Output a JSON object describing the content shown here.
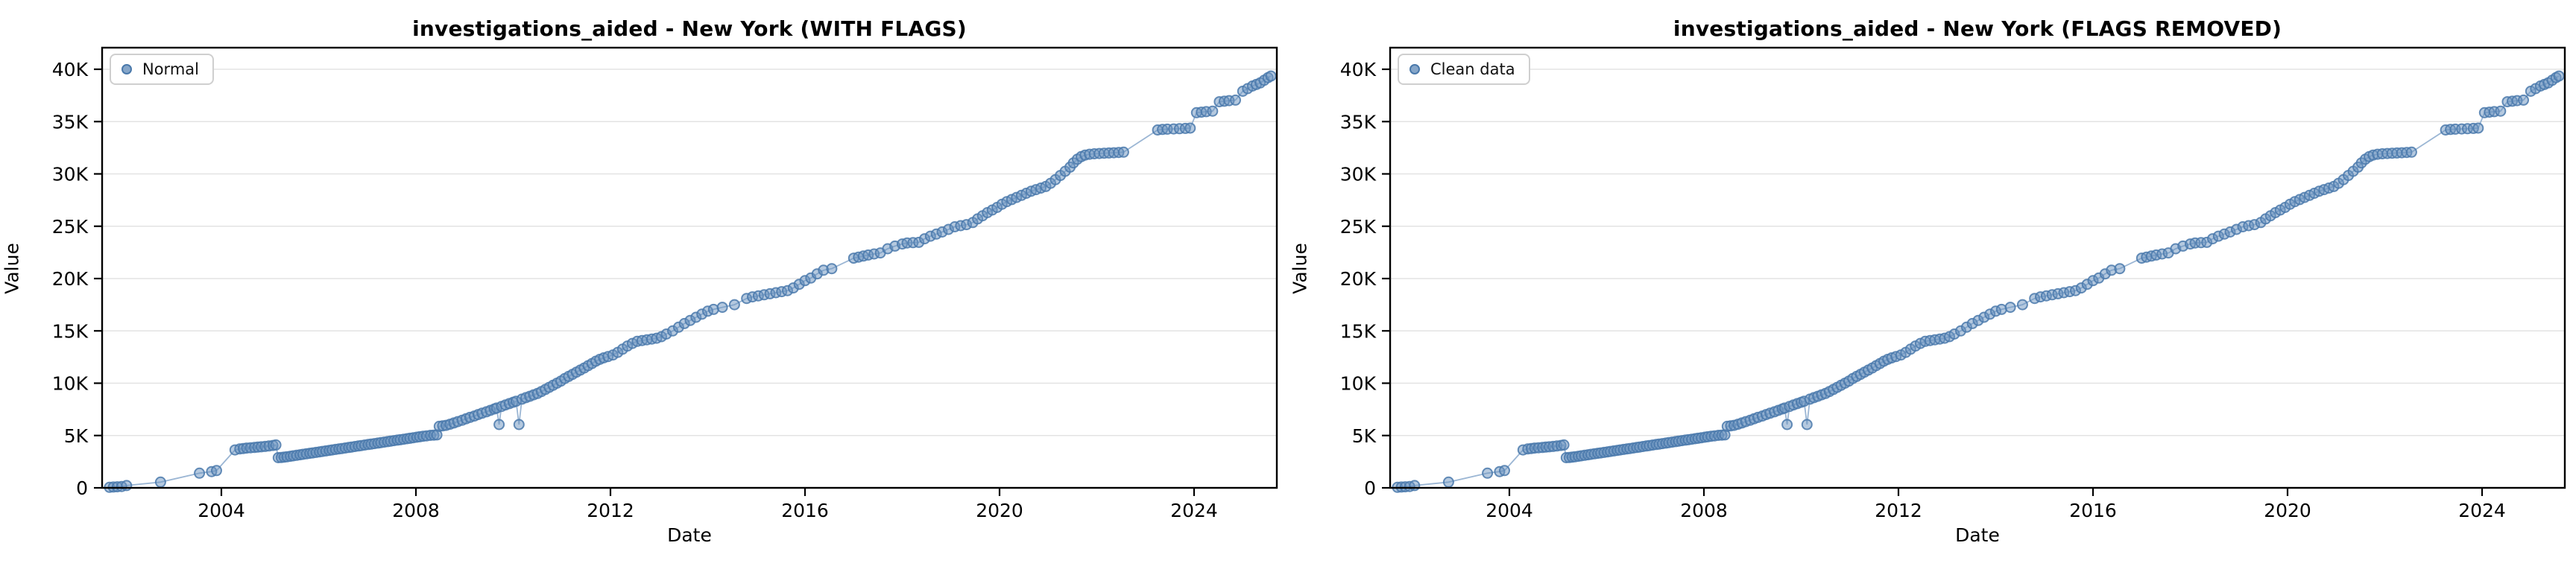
{
  "chart_data": {
    "type": "scatter",
    "layout": "1x2-subplots",
    "grid": "horizontal-light-gray",
    "legend_position": "upper-left",
    "x_ticks": [
      2004,
      2008,
      2012,
      2016,
      2020,
      2024
    ],
    "y_tick_labels": [
      "0",
      "5K",
      "10K",
      "15K",
      "20K",
      "25K",
      "30K",
      "35K",
      "40K"
    ],
    "y_tick_values_k": [
      0,
      5,
      10,
      15,
      20,
      25,
      30,
      35,
      40
    ],
    "xlim": [
      2001.55,
      2025.7
    ],
    "ylim_k": [
      0,
      42.3
    ],
    "colors": {
      "marker_fill": "#6b93c0",
      "marker_edge": "#4a79ab",
      "line": "#8aa9cd",
      "grid": "#e3e3e3",
      "frame": "#000000",
      "text": "#000000"
    },
    "panels": [
      {
        "title": "investigations_aided - New York (WITH FLAGS)",
        "series_name": "Normal",
        "xlabel": "Date",
        "ylabel": "Value",
        "points": "shared_points_year_valueK"
      },
      {
        "title": "investigations_aided - New York (FLAGS REMOVED)",
        "series_name": "Clean data",
        "xlabel": "Date",
        "ylabel": "Value",
        "points": "shared_points_year_valueK"
      }
    ],
    "flag_dip_points_year_valueK": [
      [
        2009.71,
        6.05
      ],
      [
        2010.12,
        6.05
      ]
    ],
    "shared_points_year_valueK": [
      [
        2001.7,
        0.05
      ],
      [
        2001.78,
        0.08
      ],
      [
        2001.86,
        0.1
      ],
      [
        2001.95,
        0.13
      ],
      [
        2002.05,
        0.22
      ],
      [
        2002.75,
        0.55
      ],
      [
        2003.55,
        1.4
      ],
      [
        2003.8,
        1.55
      ],
      [
        2003.9,
        1.65
      ],
      [
        2004.28,
        3.62
      ],
      [
        2004.38,
        3.72
      ],
      [
        2004.45,
        3.76
      ],
      [
        2004.52,
        3.8
      ],
      [
        2004.6,
        3.83
      ],
      [
        2004.68,
        3.86
      ],
      [
        2004.75,
        3.89
      ],
      [
        2004.82,
        3.92
      ],
      [
        2004.9,
        3.96
      ],
      [
        2004.98,
        4.0
      ],
      [
        2005.06,
        4.05
      ],
      [
        2005.12,
        4.1
      ],
      [
        2005.17,
        2.88
      ],
      [
        2005.23,
        2.9
      ],
      [
        2005.29,
        2.93
      ],
      [
        2005.35,
        2.97
      ],
      [
        2005.42,
        3.02
      ],
      [
        2005.48,
        3.06
      ],
      [
        2005.55,
        3.11
      ],
      [
        2005.62,
        3.16
      ],
      [
        2005.68,
        3.2
      ],
      [
        2005.75,
        3.25
      ],
      [
        2005.82,
        3.3
      ],
      [
        2005.88,
        3.34
      ],
      [
        2005.95,
        3.39
      ],
      [
        2006.02,
        3.44
      ],
      [
        2006.08,
        3.48
      ],
      [
        2006.15,
        3.53
      ],
      [
        2006.22,
        3.58
      ],
      [
        2006.28,
        3.62
      ],
      [
        2006.35,
        3.67
      ],
      [
        2006.42,
        3.72
      ],
      [
        2006.48,
        3.76
      ],
      [
        2006.55,
        3.81
      ],
      [
        2006.62,
        3.86
      ],
      [
        2006.68,
        3.9
      ],
      [
        2006.75,
        3.95
      ],
      [
        2006.82,
        4.0
      ],
      [
        2006.88,
        4.04
      ],
      [
        2006.95,
        4.09
      ],
      [
        2007.02,
        4.14
      ],
      [
        2007.08,
        4.18
      ],
      [
        2007.15,
        4.23
      ],
      [
        2007.22,
        4.28
      ],
      [
        2007.28,
        4.32
      ],
      [
        2007.35,
        4.37
      ],
      [
        2007.42,
        4.42
      ],
      [
        2007.48,
        4.46
      ],
      [
        2007.55,
        4.51
      ],
      [
        2007.62,
        4.56
      ],
      [
        2007.68,
        4.6
      ],
      [
        2007.75,
        4.65
      ],
      [
        2007.82,
        4.7
      ],
      [
        2007.88,
        4.74
      ],
      [
        2007.95,
        4.79
      ],
      [
        2008.02,
        4.84
      ],
      [
        2008.08,
        4.88
      ],
      [
        2008.15,
        4.93
      ],
      [
        2008.22,
        4.97
      ],
      [
        2008.3,
        5.02
      ],
      [
        2008.37,
        5.04
      ],
      [
        2008.43,
        5.06
      ],
      [
        2008.48,
        5.88
      ],
      [
        2008.55,
        5.92
      ],
      [
        2008.62,
        5.97
      ],
      [
        2008.7,
        6.08
      ],
      [
        2008.78,
        6.2
      ],
      [
        2008.86,
        6.33
      ],
      [
        2008.95,
        6.46
      ],
      [
        2009.03,
        6.6
      ],
      [
        2009.11,
        6.73
      ],
      [
        2009.2,
        6.86
      ],
      [
        2009.28,
        7.0
      ],
      [
        2009.36,
        7.13
      ],
      [
        2009.45,
        7.27
      ],
      [
        2009.53,
        7.4
      ],
      [
        2009.61,
        7.54
      ],
      [
        2009.66,
        7.62
      ],
      [
        2009.71,
        6.05
      ],
      [
        2009.76,
        7.78
      ],
      [
        2009.84,
        7.92
      ],
      [
        2009.92,
        8.05
      ],
      [
        2010.0,
        8.18
      ],
      [
        2010.06,
        8.28
      ],
      [
        2010.12,
        6.05
      ],
      [
        2010.18,
        8.48
      ],
      [
        2010.26,
        8.62
      ],
      [
        2010.34,
        8.75
      ],
      [
        2010.42,
        8.89
      ],
      [
        2010.5,
        9.02
      ],
      [
        2010.58,
        9.2
      ],
      [
        2010.66,
        9.4
      ],
      [
        2010.74,
        9.6
      ],
      [
        2010.82,
        9.8
      ],
      [
        2010.9,
        10.0
      ],
      [
        2010.98,
        10.2
      ],
      [
        2011.06,
        10.45
      ],
      [
        2011.14,
        10.65
      ],
      [
        2011.22,
        10.85
      ],
      [
        2011.3,
        11.05
      ],
      [
        2011.38,
        11.25
      ],
      [
        2011.46,
        11.45
      ],
      [
        2011.54,
        11.67
      ],
      [
        2011.62,
        11.88
      ],
      [
        2011.7,
        12.1
      ],
      [
        2011.78,
        12.28
      ],
      [
        2011.86,
        12.42
      ],
      [
        2011.95,
        12.55
      ],
      [
        2012.05,
        12.7
      ],
      [
        2012.15,
        12.95
      ],
      [
        2012.25,
        13.25
      ],
      [
        2012.35,
        13.55
      ],
      [
        2012.45,
        13.8
      ],
      [
        2012.55,
        14.0
      ],
      [
        2012.65,
        14.08
      ],
      [
        2012.75,
        14.15
      ],
      [
        2012.85,
        14.22
      ],
      [
        2012.95,
        14.3
      ],
      [
        2013.05,
        14.45
      ],
      [
        2013.15,
        14.7
      ],
      [
        2013.28,
        15.0
      ],
      [
        2013.4,
        15.35
      ],
      [
        2013.52,
        15.7
      ],
      [
        2013.64,
        16.0
      ],
      [
        2013.76,
        16.3
      ],
      [
        2013.88,
        16.6
      ],
      [
        2014.0,
        16.88
      ],
      [
        2014.12,
        17.05
      ],
      [
        2014.3,
        17.25
      ],
      [
        2014.55,
        17.5
      ],
      [
        2014.8,
        18.1
      ],
      [
        2014.92,
        18.25
      ],
      [
        2015.04,
        18.35
      ],
      [
        2015.16,
        18.45
      ],
      [
        2015.28,
        18.55
      ],
      [
        2015.4,
        18.65
      ],
      [
        2015.52,
        18.75
      ],
      [
        2015.64,
        18.85
      ],
      [
        2015.76,
        19.1
      ],
      [
        2015.88,
        19.45
      ],
      [
        2016.0,
        19.8
      ],
      [
        2016.12,
        20.05
      ],
      [
        2016.25,
        20.45
      ],
      [
        2016.38,
        20.8
      ],
      [
        2016.55,
        20.95
      ],
      [
        2017.0,
        21.95
      ],
      [
        2017.1,
        22.05
      ],
      [
        2017.2,
        22.15
      ],
      [
        2017.3,
        22.25
      ],
      [
        2017.42,
        22.35
      ],
      [
        2017.55,
        22.45
      ],
      [
        2017.7,
        22.85
      ],
      [
        2017.85,
        23.1
      ],
      [
        2018.0,
        23.3
      ],
      [
        2018.1,
        23.4
      ],
      [
        2018.22,
        23.43
      ],
      [
        2018.34,
        23.46
      ],
      [
        2018.46,
        23.8
      ],
      [
        2018.58,
        24.05
      ],
      [
        2018.7,
        24.25
      ],
      [
        2018.82,
        24.45
      ],
      [
        2018.95,
        24.7
      ],
      [
        2019.08,
        24.95
      ],
      [
        2019.2,
        25.05
      ],
      [
        2019.32,
        25.15
      ],
      [
        2019.45,
        25.35
      ],
      [
        2019.55,
        25.7
      ],
      [
        2019.65,
        26.0
      ],
      [
        2019.75,
        26.3
      ],
      [
        2019.85,
        26.55
      ],
      [
        2019.95,
        26.8
      ],
      [
        2020.05,
        27.1
      ],
      [
        2020.15,
        27.35
      ],
      [
        2020.25,
        27.55
      ],
      [
        2020.35,
        27.75
      ],
      [
        2020.45,
        27.95
      ],
      [
        2020.55,
        28.15
      ],
      [
        2020.65,
        28.35
      ],
      [
        2020.75,
        28.5
      ],
      [
        2020.85,
        28.65
      ],
      [
        2020.95,
        28.8
      ],
      [
        2021.05,
        29.1
      ],
      [
        2021.15,
        29.45
      ],
      [
        2021.25,
        29.85
      ],
      [
        2021.35,
        30.25
      ],
      [
        2021.45,
        30.65
      ],
      [
        2021.52,
        31.05
      ],
      [
        2021.6,
        31.4
      ],
      [
        2021.68,
        31.65
      ],
      [
        2021.76,
        31.8
      ],
      [
        2021.85,
        31.88
      ],
      [
        2021.95,
        31.92
      ],
      [
        2022.05,
        31.95
      ],
      [
        2022.15,
        31.98
      ],
      [
        2022.25,
        32.0
      ],
      [
        2022.35,
        32.02
      ],
      [
        2022.45,
        32.05
      ],
      [
        2022.55,
        32.08
      ],
      [
        2023.25,
        34.2
      ],
      [
        2023.35,
        34.25
      ],
      [
        2023.45,
        34.28
      ],
      [
        2023.58,
        34.3
      ],
      [
        2023.7,
        34.32
      ],
      [
        2023.82,
        34.35
      ],
      [
        2023.92,
        34.38
      ],
      [
        2024.05,
        35.85
      ],
      [
        2024.15,
        35.9
      ],
      [
        2024.25,
        35.95
      ],
      [
        2024.38,
        36.0
      ],
      [
        2024.52,
        36.9
      ],
      [
        2024.62,
        36.95
      ],
      [
        2024.72,
        37.0
      ],
      [
        2024.85,
        37.05
      ],
      [
        2025.0,
        37.9
      ],
      [
        2025.1,
        38.15
      ],
      [
        2025.2,
        38.4
      ],
      [
        2025.28,
        38.55
      ],
      [
        2025.36,
        38.7
      ],
      [
        2025.44,
        38.95
      ],
      [
        2025.52,
        39.2
      ],
      [
        2025.58,
        39.35
      ]
    ]
  }
}
